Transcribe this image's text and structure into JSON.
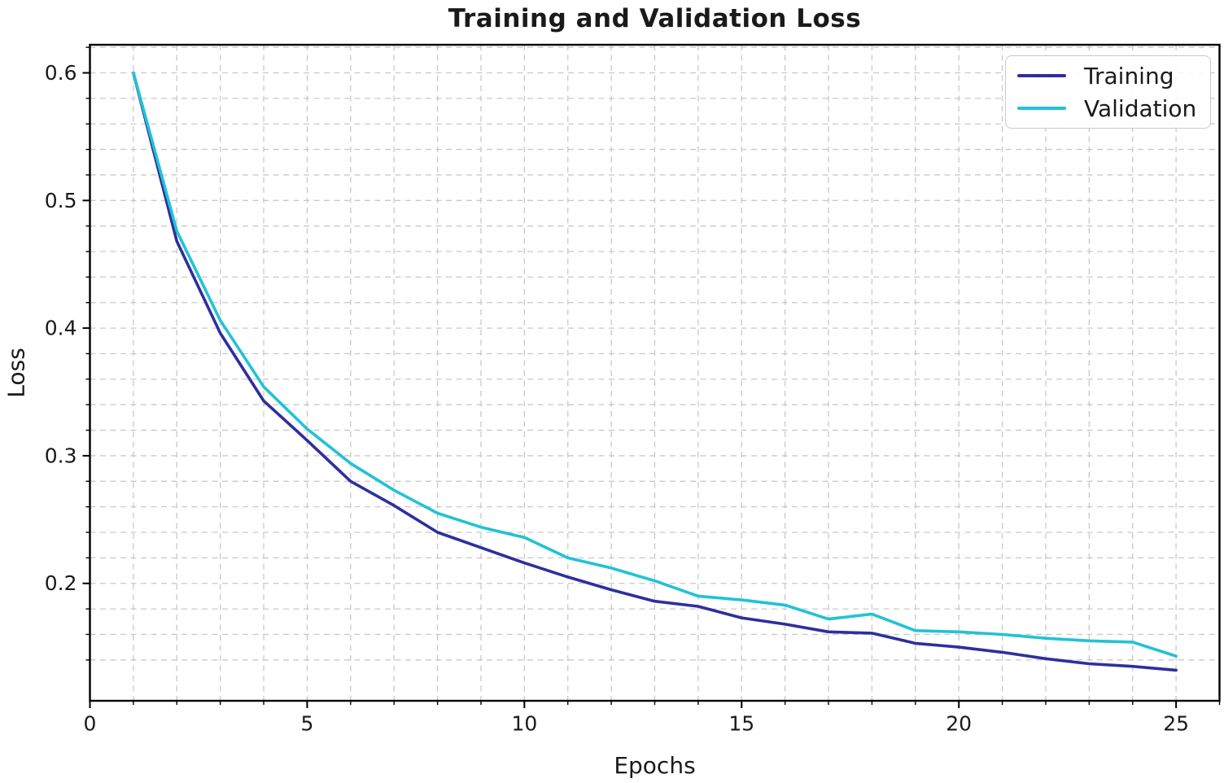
{
  "figure": {
    "background": "#ffffff"
  },
  "chart_data": {
    "type": "line",
    "title": "Training and Validation Loss",
    "xlabel": "Epochs",
    "ylabel": "Loss",
    "x": [
      1,
      2,
      3,
      4,
      5,
      6,
      7,
      8,
      9,
      10,
      11,
      12,
      13,
      14,
      15,
      16,
      17,
      18,
      19,
      20,
      21,
      22,
      23,
      24,
      25
    ],
    "series": [
      {
        "name": "Training",
        "color": "#2d2f9e",
        "values": [
          0.6,
          0.468,
          0.396,
          0.343,
          0.312,
          0.28,
          0.261,
          0.24,
          0.228,
          0.216,
          0.205,
          0.195,
          0.186,
          0.182,
          0.173,
          0.168,
          0.162,
          0.161,
          0.153,
          0.15,
          0.146,
          0.141,
          0.137,
          0.135,
          0.132
        ]
      },
      {
        "name": "Validation",
        "color": "#22c2d5",
        "values": [
          0.6,
          0.476,
          0.406,
          0.354,
          0.321,
          0.294,
          0.273,
          0.255,
          0.244,
          0.236,
          0.22,
          0.212,
          0.202,
          0.19,
          0.187,
          0.183,
          0.172,
          0.176,
          0.163,
          0.162,
          0.16,
          0.157,
          0.155,
          0.154,
          0.143
        ]
      }
    ],
    "xlim": [
      0,
      26
    ],
    "ylim": [
      0.108,
      0.622
    ],
    "xticks": [
      0,
      5,
      10,
      15,
      20,
      25
    ],
    "yticks": [
      0.2,
      0.3,
      0.4,
      0.5,
      0.6
    ],
    "minor_x_step": 1,
    "minor_y_step": 0.02,
    "grid": true,
    "grid_color": "#c9c9c9",
    "grid_style": "dashed",
    "legend_position": "upper right",
    "axis_color": "#000000",
    "tick_label_color": "#1a1a1a"
  }
}
